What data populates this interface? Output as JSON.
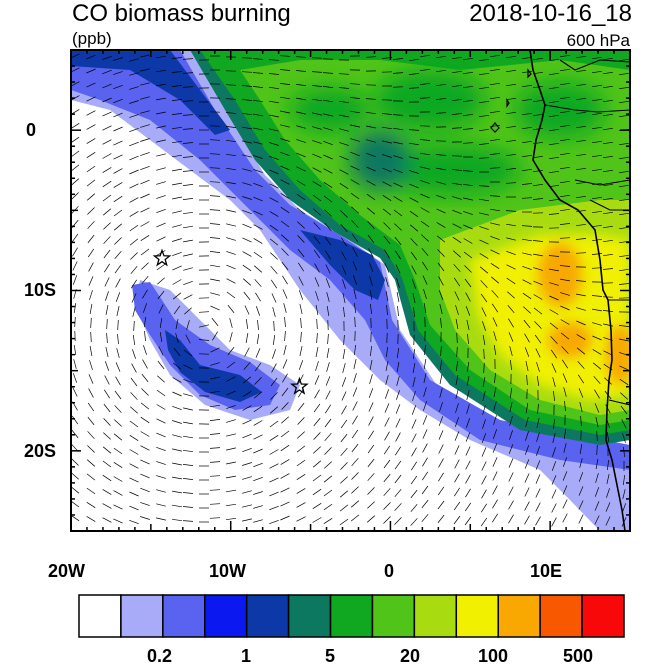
{
  "title": {
    "main": "CO biomass burning",
    "datetime": "2018-10-16_18",
    "units": "(ppb)",
    "level": "600 hPa"
  },
  "map": {
    "lon_range": [
      -20,
      15
    ],
    "lat_range": [
      -25,
      5
    ],
    "lon_ticks": [
      {
        "value": -20,
        "label": "20W"
      },
      {
        "value": -10,
        "label": "10W"
      },
      {
        "value": 0,
        "label": "0"
      },
      {
        "value": 10,
        "label": "10E"
      }
    ],
    "lat_ticks": [
      {
        "value": 0,
        "label": "0"
      },
      {
        "value": -10,
        "label": "10S"
      },
      {
        "value": -20,
        "label": "20S"
      }
    ],
    "markers": [
      {
        "name": "star-marker-north",
        "lon": -14.3,
        "lat": -8.0
      },
      {
        "name": "star-marker-south",
        "lon": -5.7,
        "lat": -16.0
      }
    ],
    "wind_vectors": "present",
    "coastline": "present"
  },
  "colorbar": {
    "colors": [
      "#ffffff",
      "#a8acf8",
      "#5a62f0",
      "#0c18f0",
      "#0c38a8",
      "#0c7860",
      "#10a820",
      "#50c418",
      "#a8dc10",
      "#f0f000",
      "#f8a800",
      "#f85800",
      "#f80808"
    ],
    "tick_labels": [
      {
        "label": "0.2",
        "boundary": 2
      },
      {
        "label": "1",
        "boundary": 4
      },
      {
        "label": "5",
        "boundary": 6
      },
      {
        "label": "20",
        "boundary": 8
      },
      {
        "label": "100",
        "boundary": 10
      },
      {
        "label": "500",
        "boundary": 12
      }
    ]
  }
}
